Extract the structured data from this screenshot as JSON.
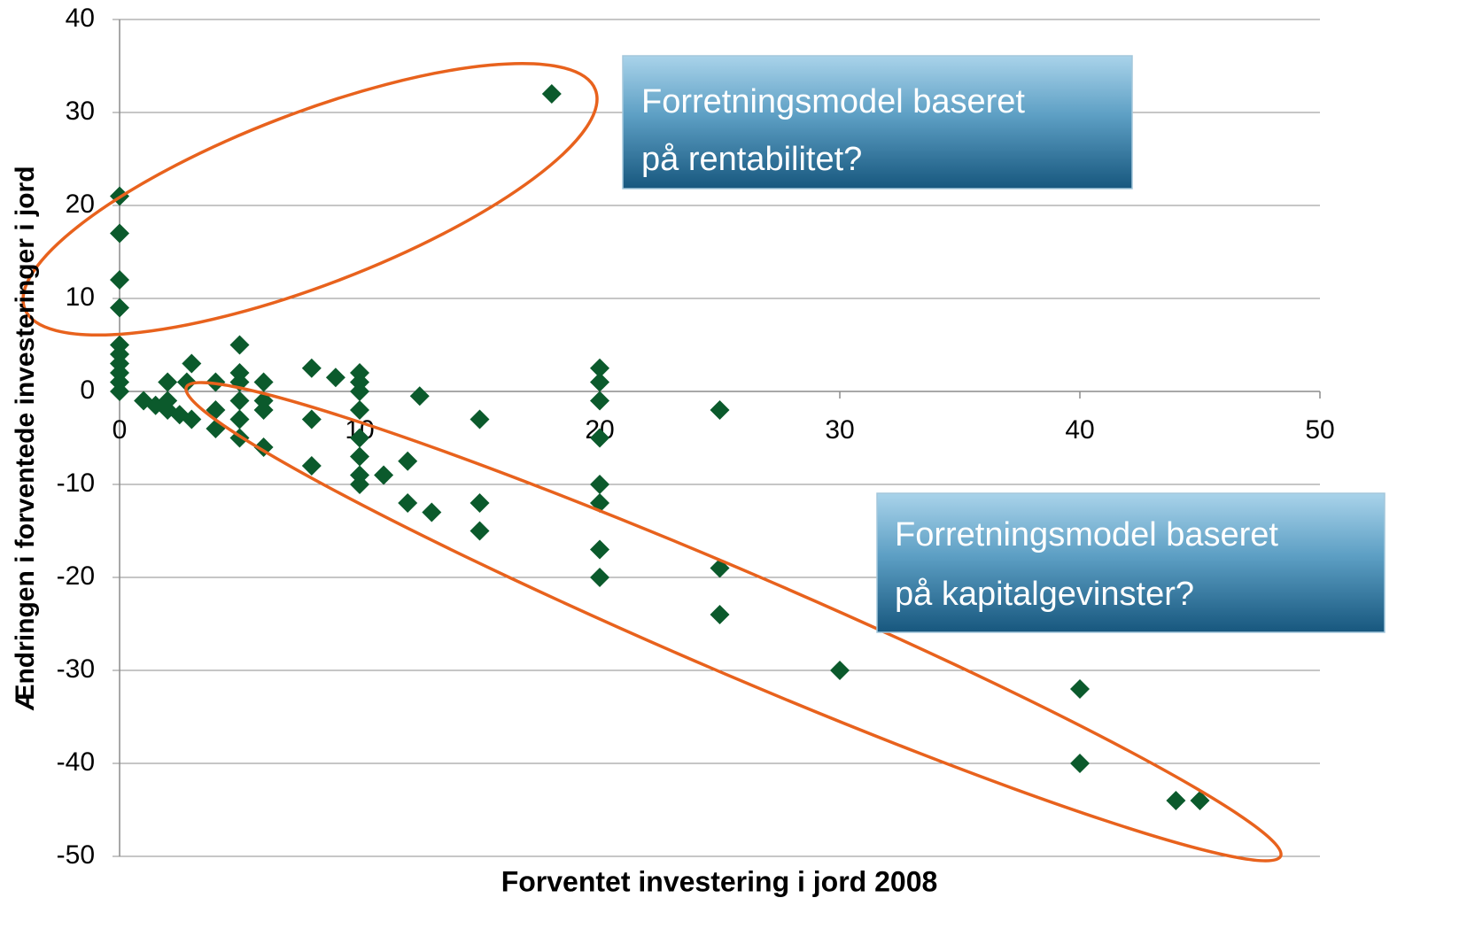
{
  "chart_data": {
    "type": "scatter",
    "xlabel": "Forventet investering i jord 2008",
    "ylabel": "Ændringen i forventede investeringer i jord",
    "annotations": [
      [
        "Forretningsmodel baseret",
        "på rentabilitet?"
      ],
      [
        "Forretningsmodel baseret",
        "på kapitalgevinster?"
      ]
    ],
    "color": "#0b5a2c",
    "x": [
      0,
      0,
      0,
      0,
      0,
      0,
      0,
      0,
      0,
      0,
      1,
      1.5,
      2,
      2,
      2,
      2.5,
      2.8,
      3,
      3,
      4,
      4,
      4,
      5,
      5,
      5,
      5,
      5,
      5,
      6,
      6,
      6,
      6,
      8,
      8,
      8,
      9,
      10,
      10,
      10,
      10,
      10,
      10,
      10,
      10,
      11,
      12,
      12,
      12.5,
      13,
      15,
      15,
      15,
      18,
      20,
      20,
      20,
      20,
      20,
      20,
      20,
      20,
      25,
      25,
      25,
      30,
      40,
      40,
      44,
      45
    ],
    "y": [
      21,
      17,
      12,
      9,
      5,
      4,
      3,
      2,
      1,
      0,
      -1,
      -1.5,
      1,
      -1,
      -2,
      -2.5,
      1,
      3,
      -3,
      1,
      -2,
      -4,
      5,
      2,
      1,
      -1,
      -3,
      -5,
      1,
      -1,
      -2,
      -6,
      2.5,
      -3,
      -8,
      1.5,
      2,
      1,
      0,
      -2,
      -5,
      -7,
      -9,
      -10,
      -9,
      -7.5,
      -12,
      -0.5,
      -13,
      -3,
      -12,
      -15,
      32,
      2.5,
      1,
      -1,
      -5,
      -10,
      -12,
      -17,
      -20,
      -2,
      -19,
      -24,
      -30,
      -32,
      -40,
      -44,
      -44
    ],
    "xlim": [
      0,
      50
    ],
    "xticks": [
      0,
      10,
      20,
      30,
      40,
      50
    ],
    "ylim": [
      -50,
      40
    ],
    "yticks": [
      -50,
      -40,
      -30,
      -20,
      -10,
      0,
      10,
      20,
      30,
      40
    ],
    "grid": true
  }
}
